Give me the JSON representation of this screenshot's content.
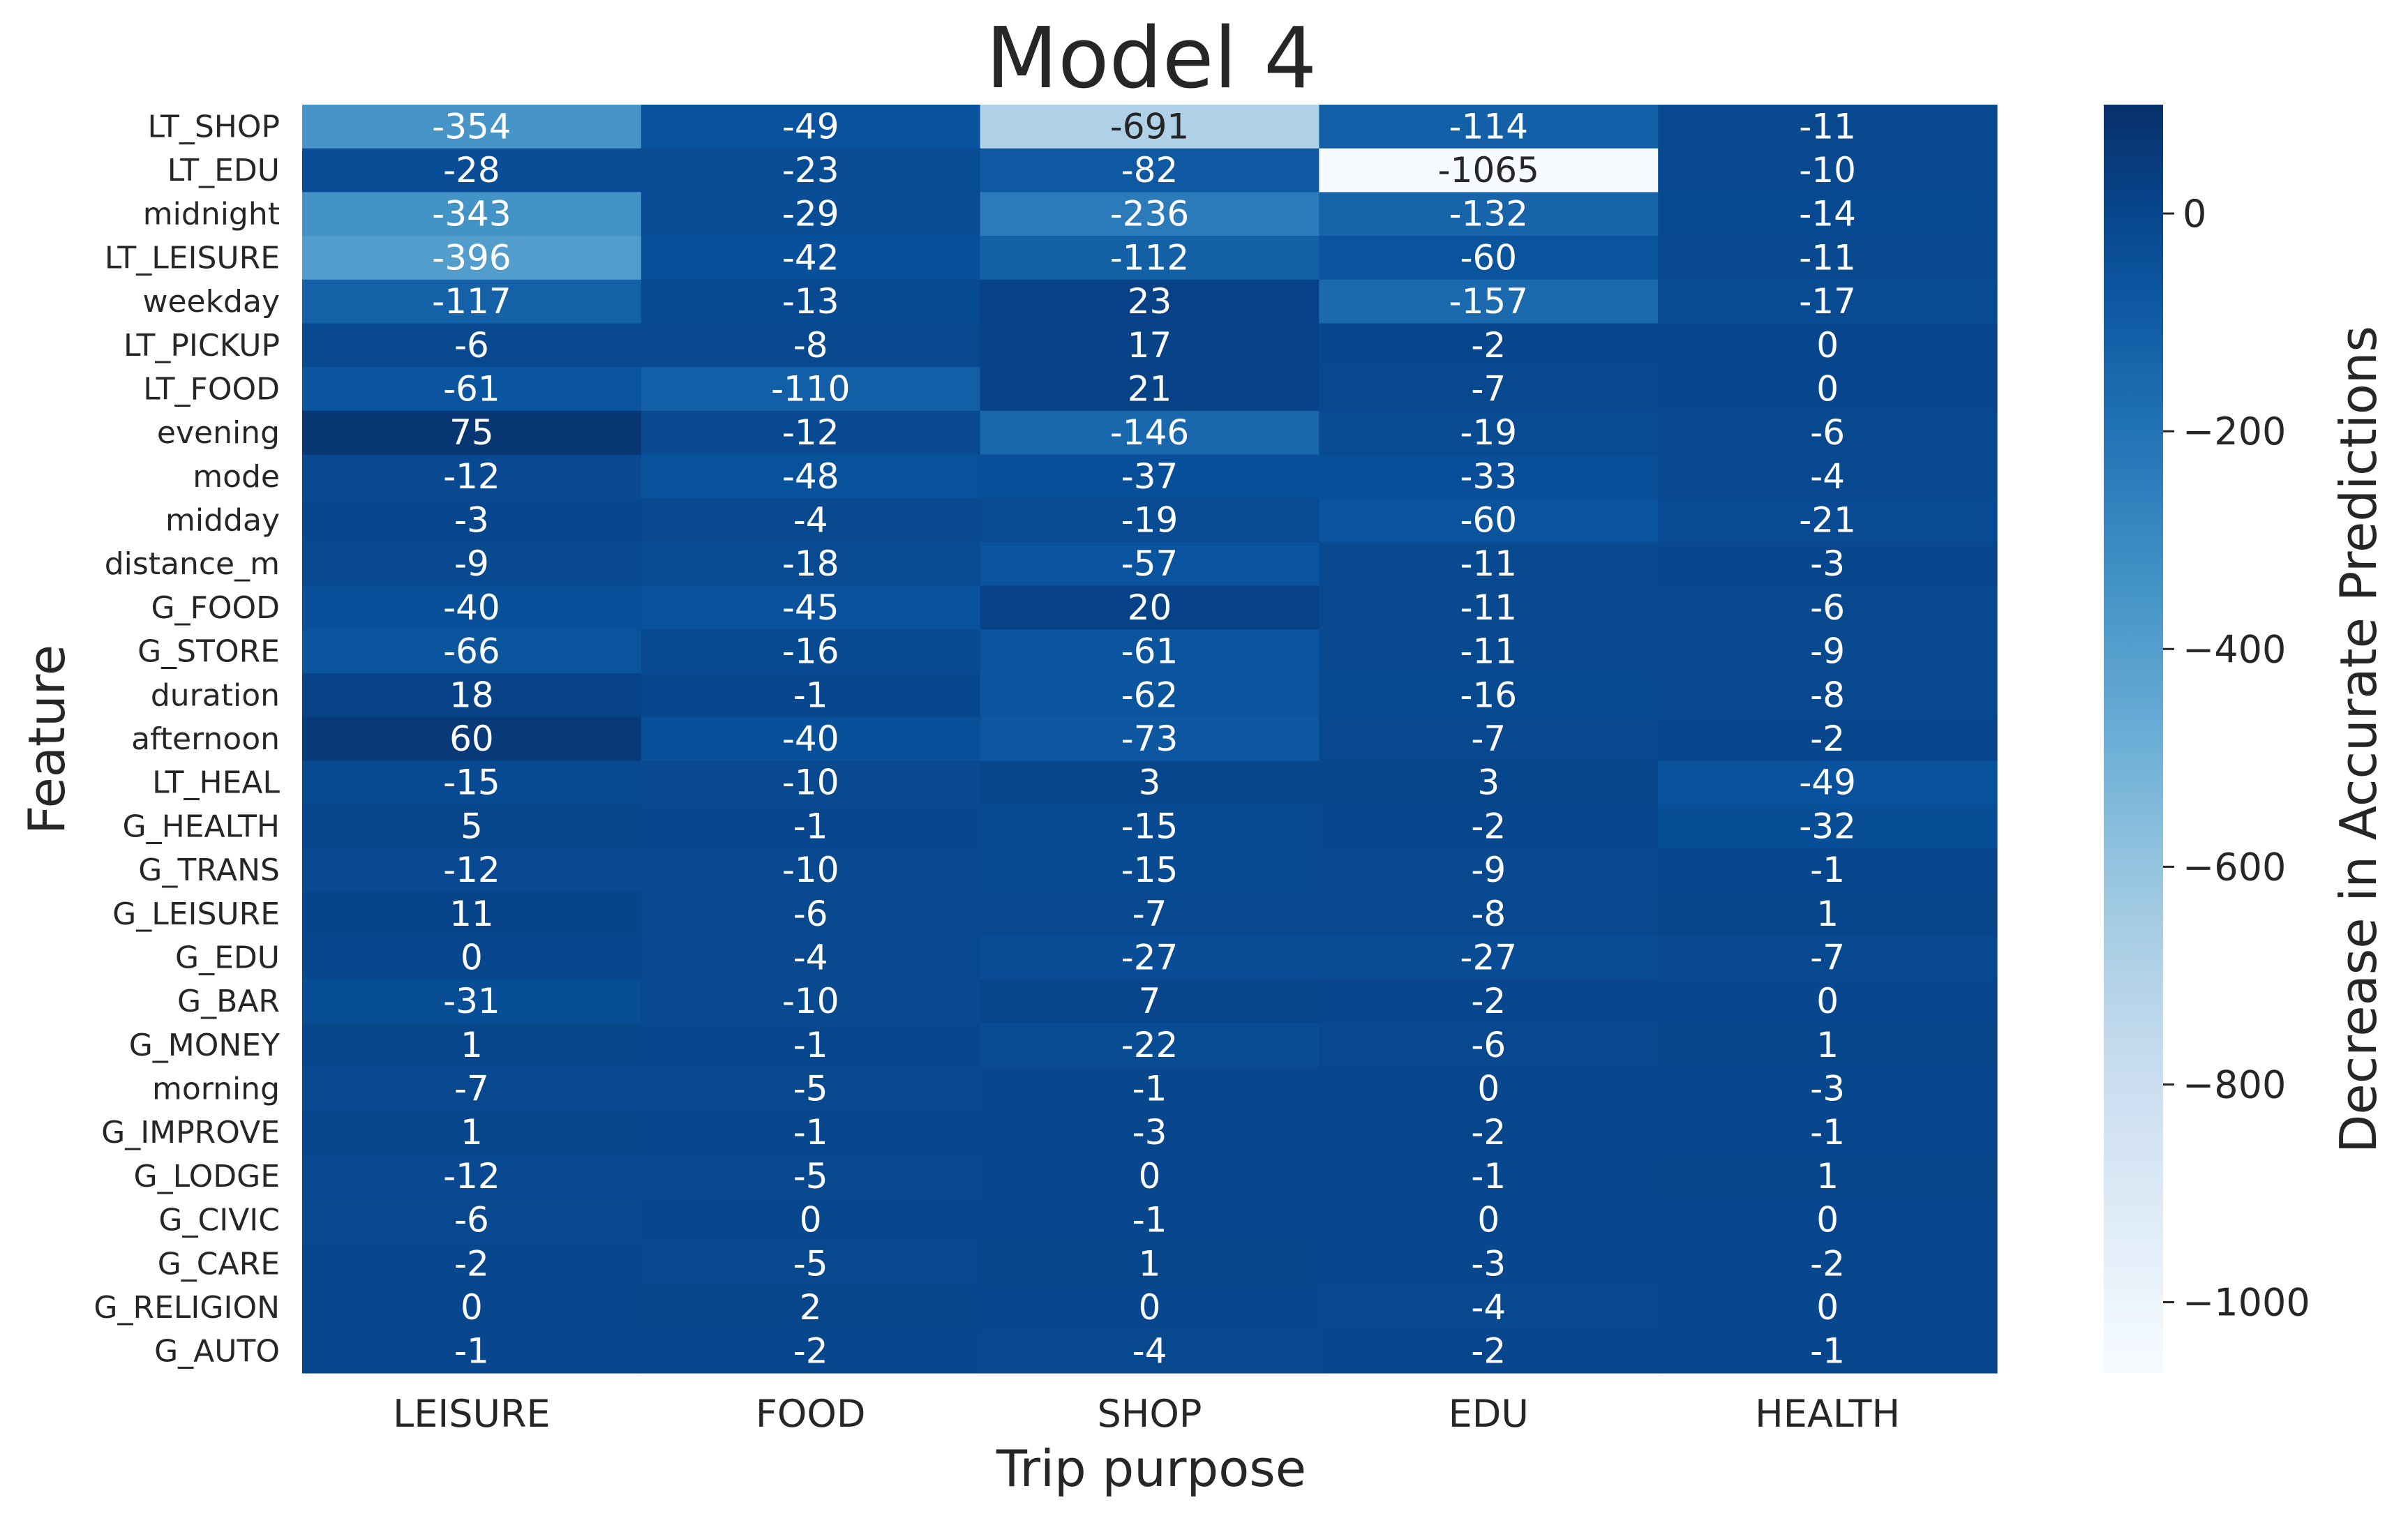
{
  "chart_data": {
    "type": "heatmap",
    "title": "Model 4",
    "xlabel": "Trip purpose",
    "ylabel": "Feature",
    "colorbar_label": "Decrease in Accurate Predictions",
    "colormap": "Blues_reversed",
    "colorbar_range": [
      -1065,
      100
    ],
    "colorbar_ticks": [
      0,
      -200,
      -400,
      -600,
      -800,
      -1000
    ],
    "colorbar_tick_labels": [
      "0",
      "−200",
      "−400",
      "−600",
      "−800",
      "−1000"
    ],
    "x": [
      "LEISURE",
      "FOOD",
      "SHOP",
      "EDU",
      "HEALTH"
    ],
    "y": [
      "LT_SHOP",
      "LT_EDU",
      "midnight",
      "LT_LEISURE",
      "weekday",
      "LT_PICKUP",
      "LT_FOOD",
      "evening",
      "mode",
      "midday",
      "distance_m",
      "G_FOOD",
      "G_STORE",
      "duration",
      "afternoon",
      "LT_HEAL",
      "G_HEALTH",
      "G_TRANS",
      "G_LEISURE",
      "G_EDU",
      "G_BAR",
      "G_MONEY",
      "morning",
      "G_IMPROVE",
      "G_LODGE",
      "G_CIVIC",
      "G_CARE",
      "G_RELIGION",
      "G_AUTO"
    ],
    "values": [
      [
        -354,
        -49,
        -691,
        -114,
        -11
      ],
      [
        -28,
        -23,
        -82,
        -1065,
        -10
      ],
      [
        -343,
        -29,
        -236,
        -132,
        -14
      ],
      [
        -396,
        -42,
        -112,
        -60,
        -11
      ],
      [
        -117,
        -13,
        23,
        -157,
        -17
      ],
      [
        -6,
        -8,
        17,
        -2,
        0
      ],
      [
        -61,
        -110,
        21,
        -7,
        0
      ],
      [
        75,
        -12,
        -146,
        -19,
        -6
      ],
      [
        -12,
        -48,
        -37,
        -33,
        -4
      ],
      [
        -3,
        -4,
        -19,
        -60,
        -21
      ],
      [
        -9,
        -18,
        -57,
        -11,
        -3
      ],
      [
        -40,
        -45,
        20,
        -11,
        -6
      ],
      [
        -66,
        -16,
        -61,
        -11,
        -9
      ],
      [
        18,
        -1,
        -62,
        -16,
        -8
      ],
      [
        60,
        -40,
        -73,
        -7,
        -2
      ],
      [
        -15,
        -10,
        3,
        3,
        -49
      ],
      [
        5,
        -1,
        -15,
        -2,
        -32
      ],
      [
        -12,
        -10,
        -15,
        -9,
        -1
      ],
      [
        11,
        -6,
        -7,
        -8,
        1
      ],
      [
        0,
        -4,
        -27,
        -27,
        -7
      ],
      [
        -31,
        -10,
        7,
        -2,
        0
      ],
      [
        1,
        -1,
        -22,
        -6,
        1
      ],
      [
        -7,
        -5,
        -1,
        0,
        -3
      ],
      [
        1,
        -1,
        -3,
        -2,
        -1
      ],
      [
        -12,
        -5,
        0,
        -1,
        1
      ],
      [
        -6,
        0,
        -1,
        0,
        0
      ],
      [
        -2,
        -5,
        1,
        -3,
        -2
      ],
      [
        0,
        2,
        0,
        -4,
        0
      ],
      [
        -1,
        -2,
        -4,
        -2,
        -1
      ]
    ]
  }
}
